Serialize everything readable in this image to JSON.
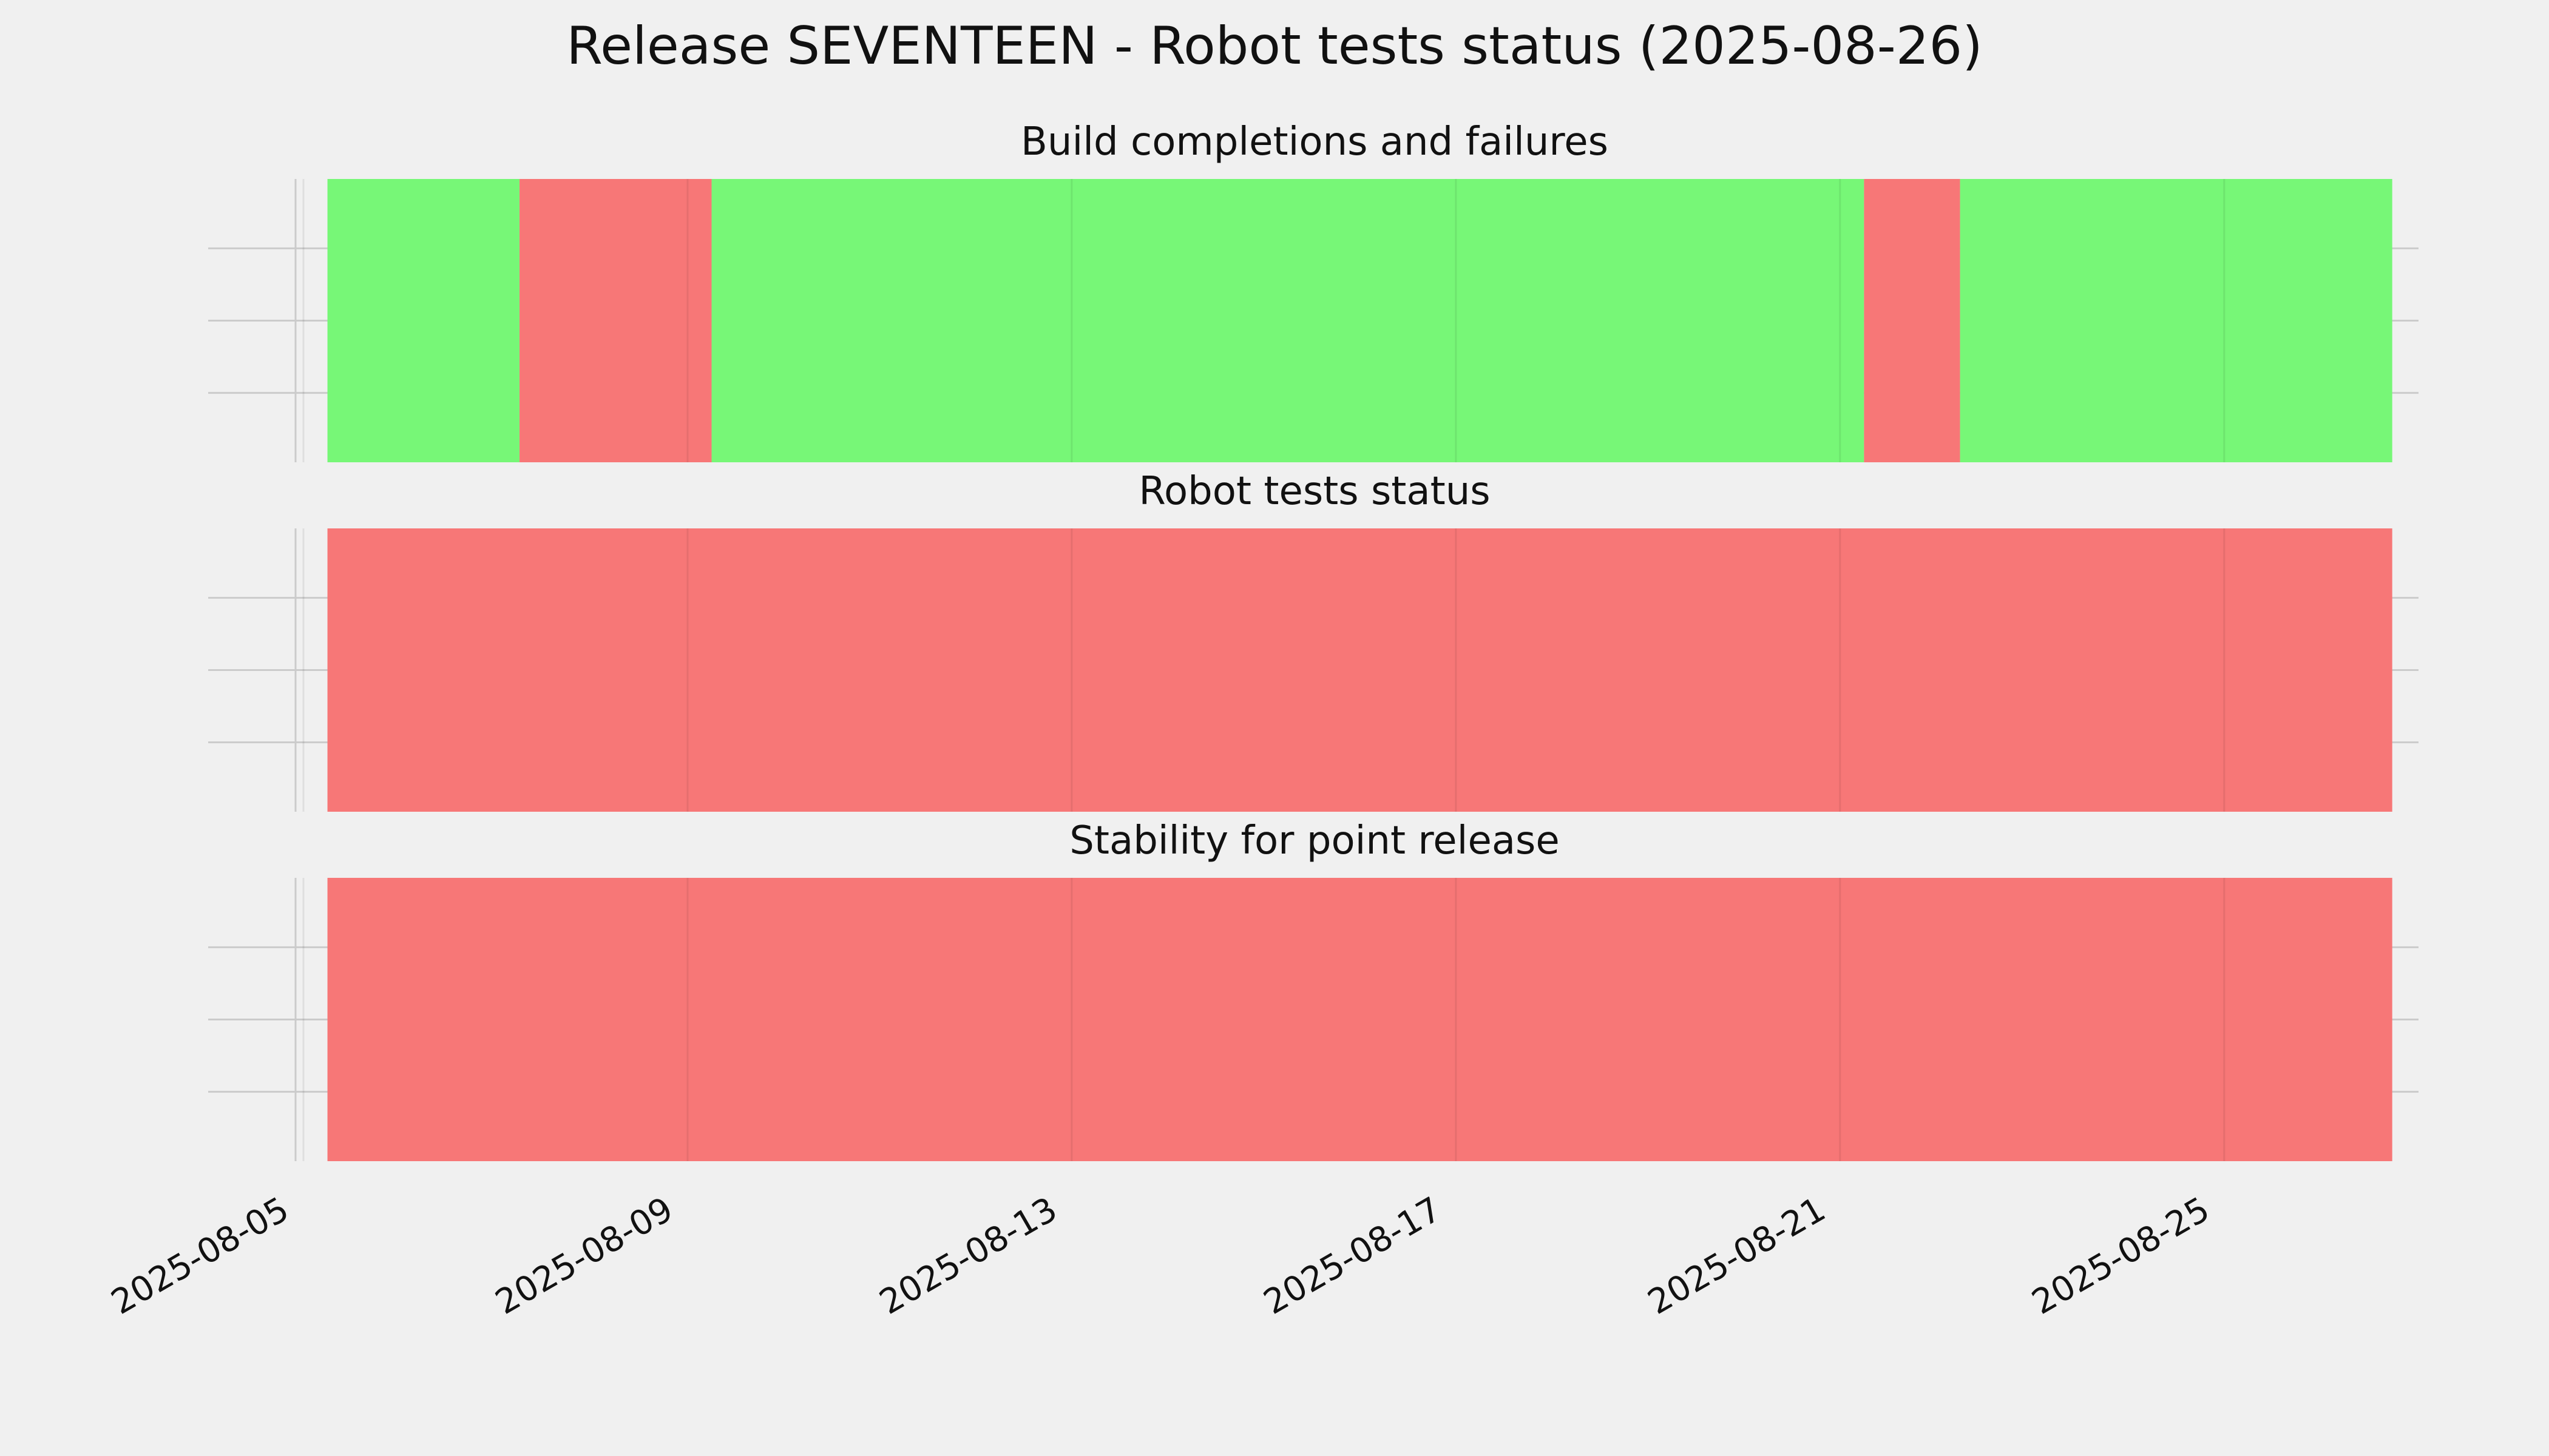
{
  "page_title": "Release SEVENTEEN - Robot tests status (2025-08-26)",
  "colors": {
    "background": "#f0f0f0",
    "success": "#77f777",
    "failure": "#f77777",
    "grid": "#cbcbcb"
  },
  "chart_data": [
    {
      "type": "timeline",
      "title": "Build completions and failures",
      "xlim": [
        "2025-08-05",
        "2025-08-26"
      ],
      "xticks": [
        "2025-08-05",
        "2025-08-09",
        "2025-08-13",
        "2025-08-17",
        "2025-08-21",
        "2025-08-25"
      ],
      "grid": true,
      "segments": [
        {
          "start": "2025-08-05 06:00",
          "end": "2025-08-07 06:00",
          "status": "success"
        },
        {
          "start": "2025-08-07 06:00",
          "end": "2025-08-09 06:00",
          "status": "failure"
        },
        {
          "start": "2025-08-09 06:00",
          "end": "2025-08-21 06:00",
          "status": "success"
        },
        {
          "start": "2025-08-21 06:00",
          "end": "2025-08-22 06:00",
          "status": "failure"
        },
        {
          "start": "2025-08-22 06:00",
          "end": "2025-08-26 18:00",
          "status": "success"
        }
      ]
    },
    {
      "type": "timeline",
      "title": "Robot tests status",
      "xlim": [
        "2025-08-05",
        "2025-08-26"
      ],
      "xticks": [
        "2025-08-05",
        "2025-08-09",
        "2025-08-13",
        "2025-08-17",
        "2025-08-21",
        "2025-08-25"
      ],
      "grid": true,
      "segments": [
        {
          "start": "2025-08-05 06:00",
          "end": "2025-08-26 18:00",
          "status": "failure"
        }
      ]
    },
    {
      "type": "timeline",
      "title": "Stability for point release",
      "xlim": [
        "2025-08-05",
        "2025-08-26"
      ],
      "xticks": [
        "2025-08-05",
        "2025-08-09",
        "2025-08-13",
        "2025-08-17",
        "2025-08-21",
        "2025-08-25"
      ],
      "grid": true,
      "segments": [
        {
          "start": "2025-08-05 06:00",
          "end": "2025-08-26 18:00",
          "status": "failure"
        }
      ]
    }
  ]
}
